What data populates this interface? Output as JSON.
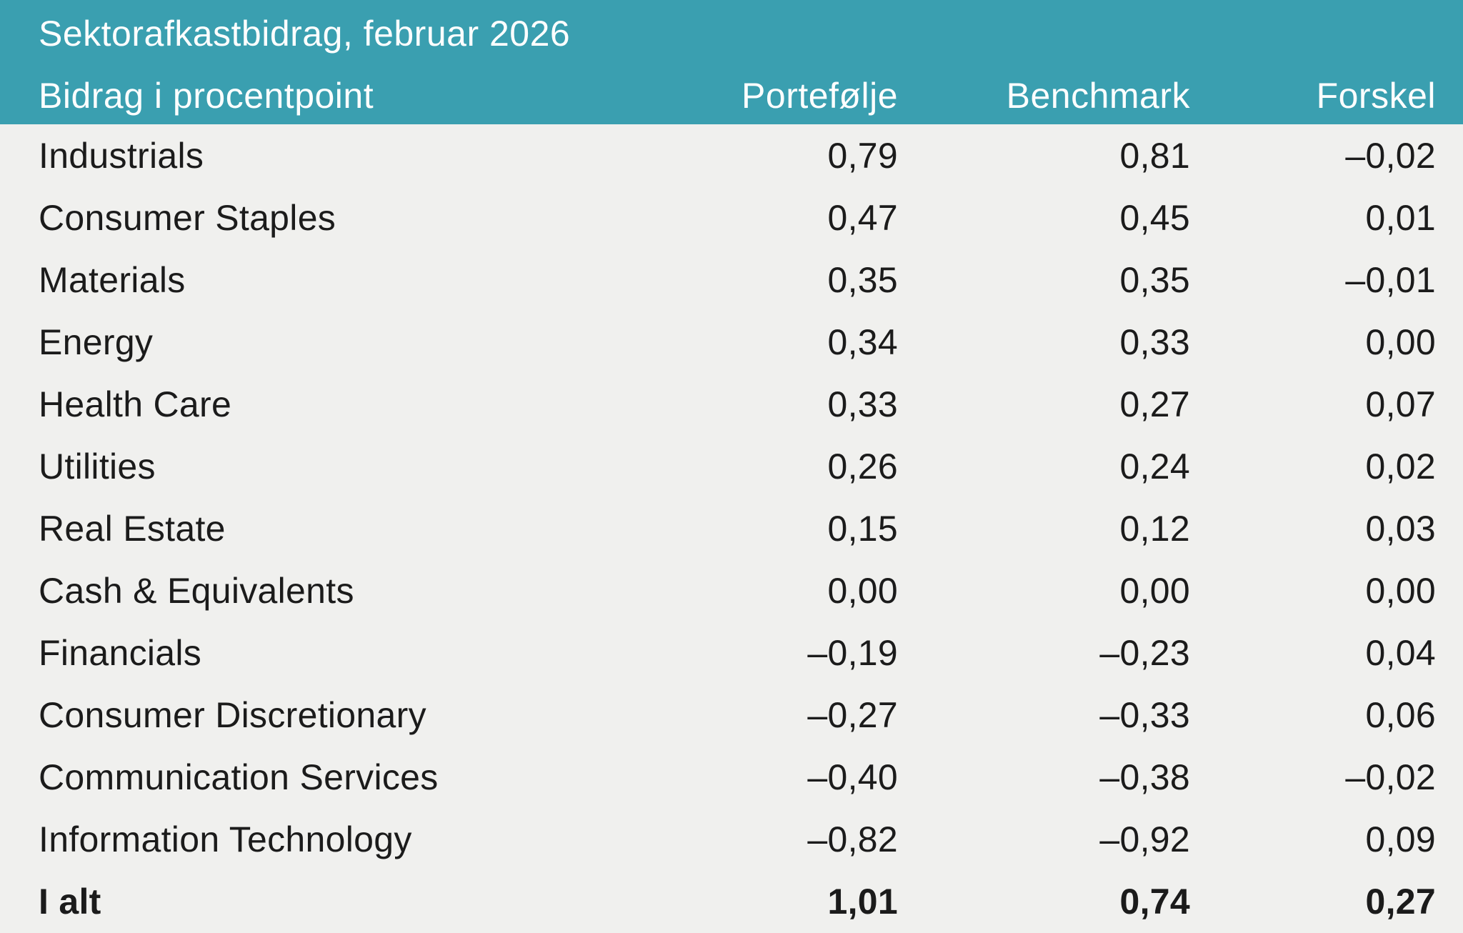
{
  "colors": {
    "header_bg": "#3a9fb0",
    "header_text": "#fdfefe",
    "body_bg": "#f0f0ee",
    "body_text": "#1b1b1b"
  },
  "chart_data": {
    "type": "table",
    "title": "Sektorafkastbidrag, februar 2026",
    "columns": [
      "Bidrag i procentpoint",
      "Portefølje",
      "Benchmark",
      "Forskel"
    ],
    "rows": [
      {
        "label": "Industrials",
        "portefolje": "0,79",
        "benchmark": "0,81",
        "forskel": "–0,02"
      },
      {
        "label": "Consumer Staples",
        "portefolje": "0,47",
        "benchmark": "0,45",
        "forskel": "0,01"
      },
      {
        "label": "Materials",
        "portefolje": "0,35",
        "benchmark": "0,35",
        "forskel": "–0,01"
      },
      {
        "label": "Energy",
        "portefolje": "0,34",
        "benchmark": "0,33",
        "forskel": "0,00"
      },
      {
        "label": "Health Care",
        "portefolje": "0,33",
        "benchmark": "0,27",
        "forskel": "0,07"
      },
      {
        "label": "Utilities",
        "portefolje": "0,26",
        "benchmark": "0,24",
        "forskel": "0,02"
      },
      {
        "label": "Real Estate",
        "portefolje": "0,15",
        "benchmark": "0,12",
        "forskel": "0,03"
      },
      {
        "label": "Cash & Equivalents",
        "portefolje": "0,00",
        "benchmark": "0,00",
        "forskel": "0,00"
      },
      {
        "label": "Financials",
        "portefolje": "–0,19",
        "benchmark": "–0,23",
        "forskel": "0,04"
      },
      {
        "label": "Consumer Discretionary",
        "portefolje": "–0,27",
        "benchmark": "–0,33",
        "forskel": "0,06"
      },
      {
        "label": "Communication Services",
        "portefolje": "–0,40",
        "benchmark": "–0,38",
        "forskel": "–0,02"
      },
      {
        "label": "Information Technology",
        "portefolje": "–0,82",
        "benchmark": "–0,92",
        "forskel": "0,09"
      }
    ],
    "total_row": {
      "label": "I alt",
      "portefolje": "1,01",
      "benchmark": "0,74",
      "forskel": "0,27"
    }
  }
}
